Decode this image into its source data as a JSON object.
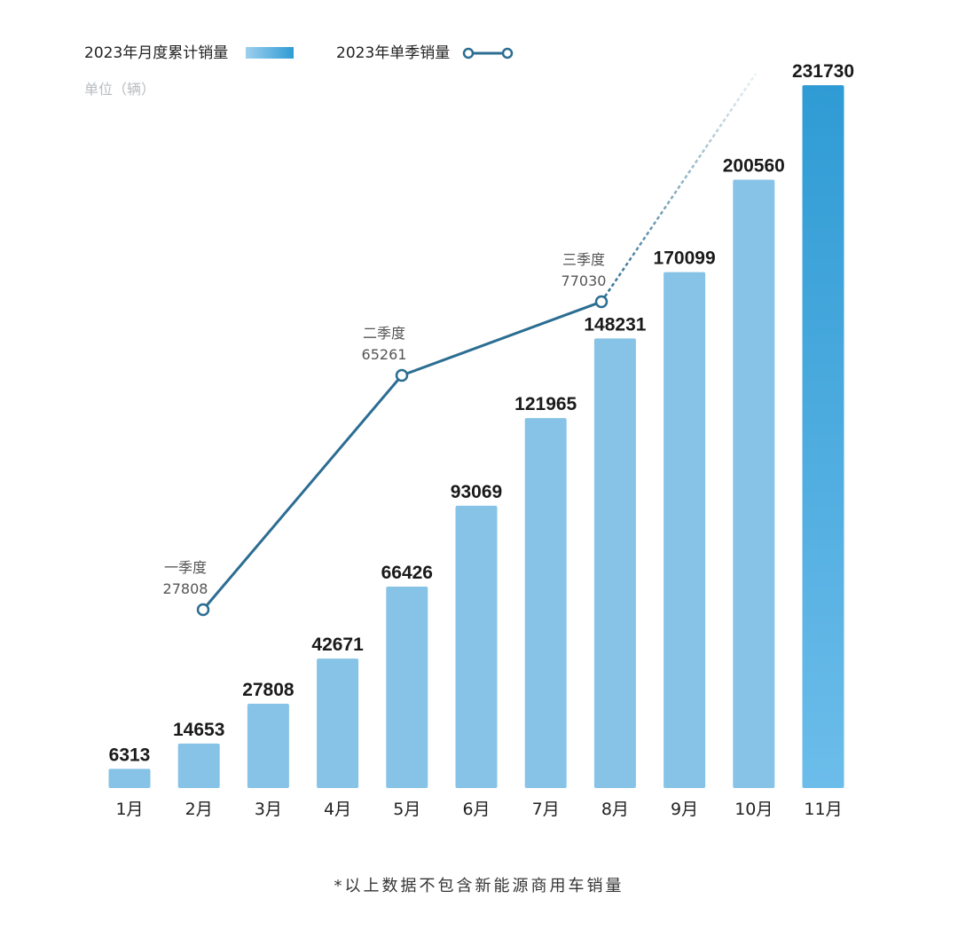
{
  "chart_data": {
    "type": "bar",
    "categories": [
      "1月",
      "2月",
      "3月",
      "4月",
      "5月",
      "6月",
      "7月",
      "8月",
      "9月",
      "10月",
      "11月"
    ],
    "values": [
      6313,
      14653,
      27808,
      42671,
      66426,
      93069,
      121965,
      148231,
      170099,
      200560,
      231730
    ],
    "unit_label": "单位（辆）",
    "legend": {
      "bar_series": "2023年月度累计销量",
      "line_series": "2023年单季销量"
    },
    "quarters": [
      {
        "label": "一季度",
        "value": 27808,
        "month_index": 1
      },
      {
        "label": "二季度",
        "value": 65261,
        "month_index": 4
      },
      {
        "label": "三季度",
        "value": 77030,
        "month_index": 7
      }
    ],
    "footnote": "*以上数据不包含新能源商用车销量",
    "colors": {
      "bar": "#86c3e6",
      "bar_highlight_top": "#2f9bd4",
      "bar_highlight_bottom": "#6cbdea",
      "line": "#2c6d92"
    }
  }
}
